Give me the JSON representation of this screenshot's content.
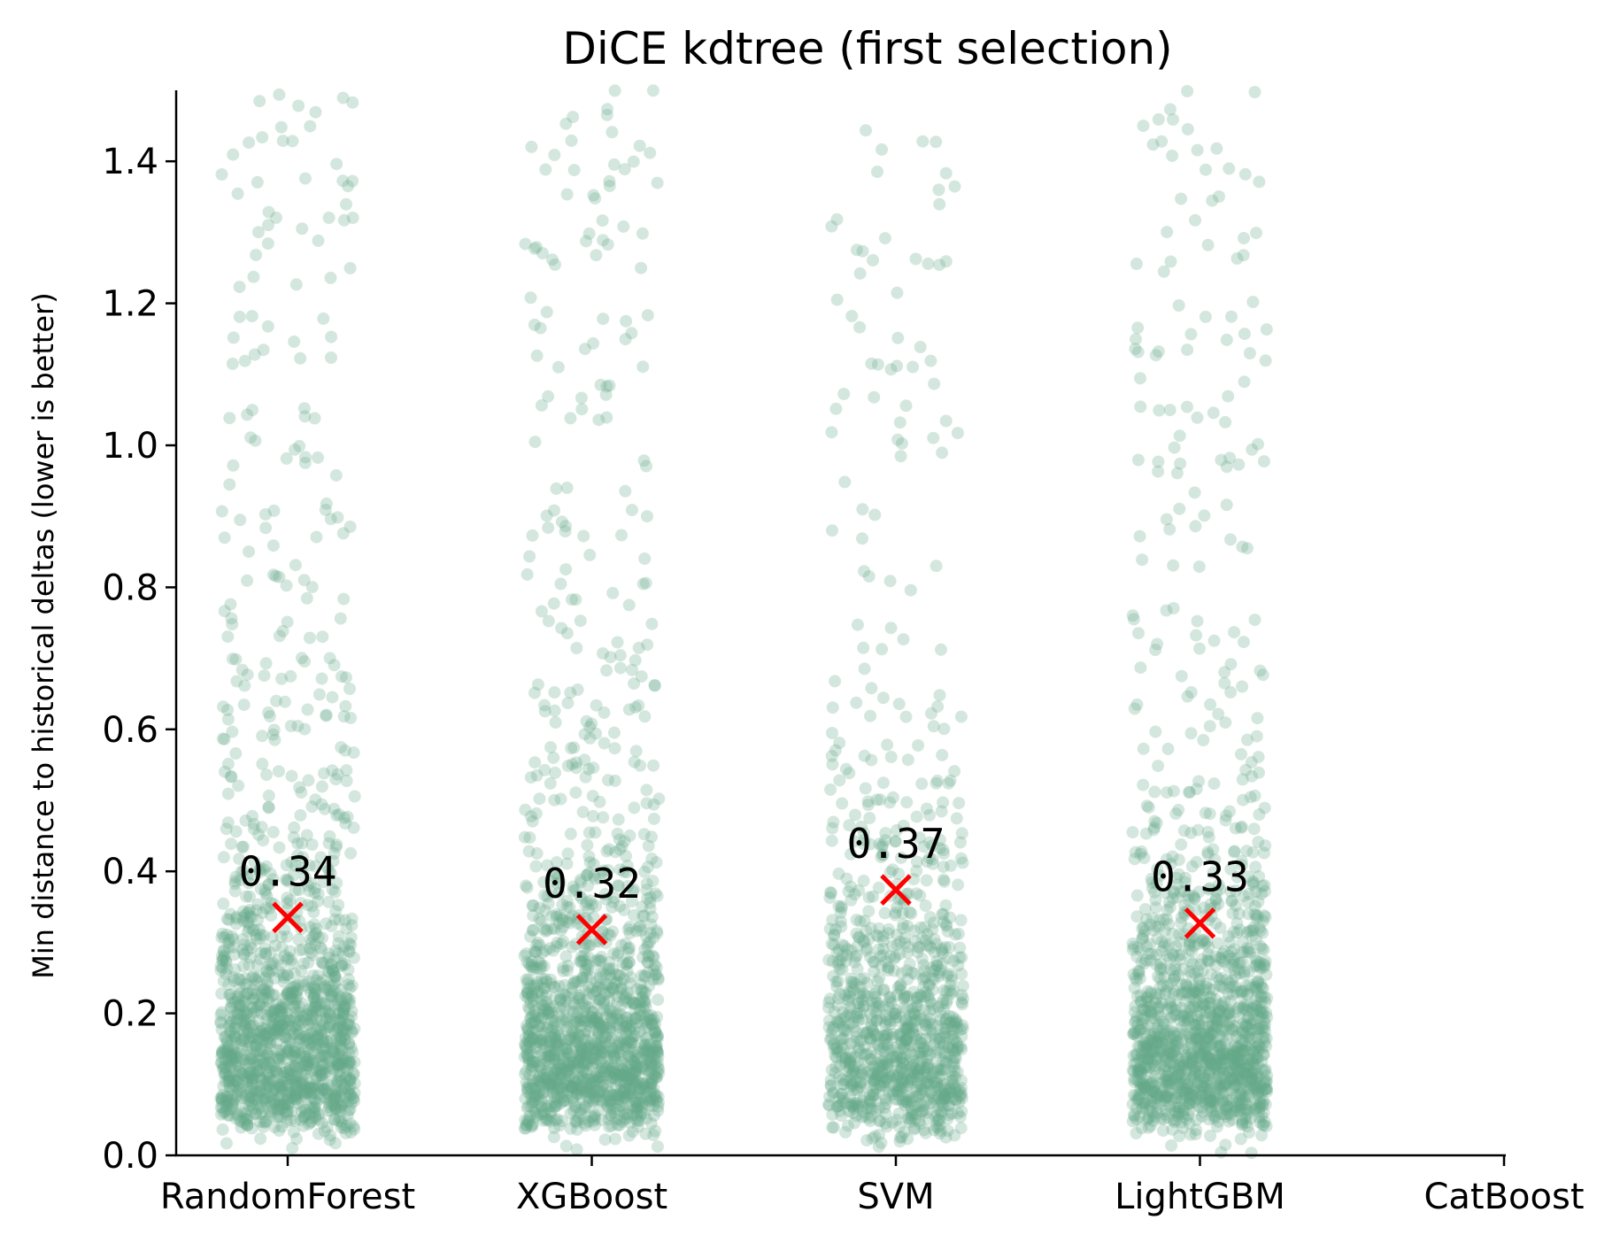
{
  "chart_data": {
    "type": "scatter",
    "title": "DiCE kdtree (first selection)",
    "ylabel": "Min distance to historical deltas (lower is better)",
    "xlabel": "",
    "ylim": [
      0,
      1.5
    ],
    "yticks": [
      "0.0",
      "0.2",
      "0.4",
      "0.6",
      "0.8",
      "1.0",
      "1.2",
      "1.4"
    ],
    "categories": [
      "RandomForest",
      "XGBoost",
      "SVM",
      "LightGBM",
      "CatBoost"
    ],
    "grid": false,
    "point_color": "#66aa88",
    "mean_marker_color": "#ff0000",
    "mean_marker": "x",
    "series": [
      {
        "category": "RandomForest",
        "mean": 0.335,
        "mean_label": "0.34",
        "n_points": 1500
      },
      {
        "category": "XGBoost",
        "mean": 0.318,
        "mean_label": "0.32",
        "n_points": 1500
      },
      {
        "category": "SVM",
        "mean": 0.374,
        "mean_label": "0.37",
        "n_points": 1100
      },
      {
        "category": "LightGBM",
        "mean": 0.327,
        "mean_label": "0.33",
        "n_points": 1500
      },
      {
        "category": "CatBoost",
        "mean": null,
        "mean_label": "",
        "n_points": 0
      }
    ]
  }
}
